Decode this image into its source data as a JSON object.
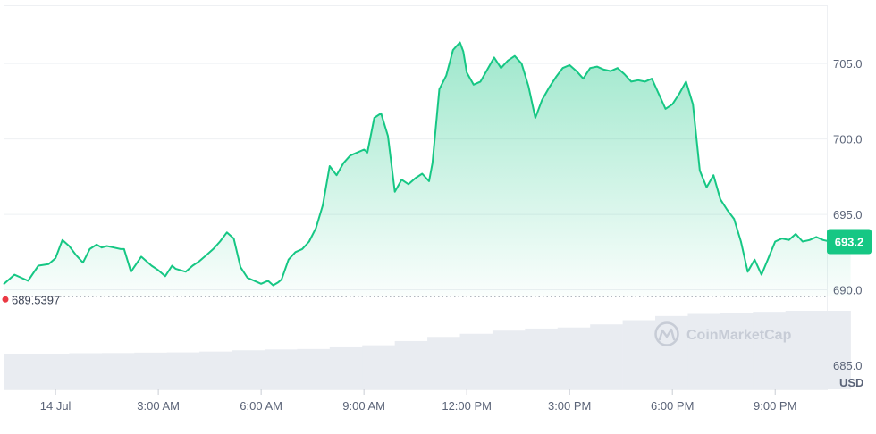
{
  "chart_data": {
    "type": "area",
    "unit": "USD",
    "ylim": [
      683.4,
      708.8
    ],
    "y_ticks": [
      685.0,
      690.0,
      695.0,
      700.0,
      705.0
    ],
    "y_tick_labels": [
      "685.0",
      "690.0",
      "695.0",
      "700.0",
      "705.0"
    ],
    "x_tick_labels": [
      "14 Jul",
      "3:00 AM",
      "6:00 AM",
      "9:00 AM",
      "12:00 PM",
      "3:00 PM",
      "6:00 PM",
      "9:00 PM"
    ],
    "x_tick_hours": [
      0,
      3,
      6,
      9,
      12,
      15,
      18,
      21
    ],
    "x_range_hours": [
      -1.5,
      23.3
    ],
    "open_price": 689.5397,
    "open_price_label": "689.5397",
    "last_price": 693.2,
    "last_price_label": "693.2",
    "grid": true,
    "line_color": "#16c784",
    "series": [
      {
        "x": [
          -1.5,
          -1.2,
          -1.0,
          -0.8,
          -0.5,
          -0.2,
          0.0,
          0.2,
          0.4,
          0.6,
          0.8,
          1.0,
          1.2,
          1.35,
          1.5,
          1.7,
          1.9,
          2.0,
          2.2,
          2.5,
          2.8,
          3.0,
          3.2,
          3.4,
          3.5,
          3.8,
          4.0,
          4.2,
          4.4,
          4.6,
          4.8,
          5.0,
          5.2,
          5.4,
          5.6,
          5.8,
          6.0,
          6.2,
          6.35,
          6.5,
          6.6,
          6.8,
          7.0,
          7.2,
          7.4,
          7.6,
          7.8,
          8.0,
          8.2,
          8.4,
          8.6,
          8.8,
          9.0,
          9.1,
          9.3,
          9.5,
          9.7,
          9.9,
          10.1,
          10.3,
          10.5,
          10.7,
          10.9,
          11.0,
          11.2,
          11.4,
          11.6,
          11.8,
          11.9,
          12.0,
          12.2,
          12.4,
          12.6,
          12.8,
          13.0,
          13.2,
          13.4,
          13.6,
          13.8,
          14.0,
          14.2,
          14.4,
          14.6,
          14.8,
          15.0,
          15.2,
          15.4,
          15.6,
          15.8,
          16.0,
          16.2,
          16.4,
          16.6,
          16.8,
          17.0,
          17.2,
          17.4,
          17.6,
          17.8,
          18.0,
          18.2,
          18.4,
          18.6,
          18.8,
          19.0,
          19.2,
          19.4,
          19.6,
          19.8,
          20.0,
          20.2,
          20.4,
          20.6,
          20.8,
          21.0,
          21.2,
          21.4,
          21.6,
          21.8,
          22.0,
          22.2,
          22.4,
          22.6,
          22.8,
          23.0,
          23.2
        ],
        "values": [
          690.4,
          691.0,
          690.8,
          690.6,
          691.6,
          691.7,
          692.1,
          693.3,
          692.9,
          692.3,
          691.8,
          692.7,
          693.0,
          692.8,
          692.9,
          692.8,
          692.7,
          692.7,
          691.2,
          692.2,
          691.6,
          691.3,
          690.9,
          691.6,
          691.4,
          691.2,
          691.6,
          691.9,
          692.3,
          692.7,
          693.2,
          693.8,
          693.4,
          691.5,
          690.8,
          690.6,
          690.4,
          690.6,
          690.3,
          690.5,
          690.7,
          692.0,
          692.5,
          692.7,
          693.2,
          694.1,
          695.6,
          698.2,
          697.6,
          698.4,
          698.9,
          699.1,
          699.3,
          699.1,
          701.4,
          701.7,
          700.2,
          696.5,
          697.3,
          697.0,
          697.4,
          697.7,
          697.2,
          698.4,
          703.3,
          704.2,
          705.9,
          706.4,
          705.8,
          704.4,
          703.6,
          703.8,
          704.6,
          705.4,
          704.7,
          705.2,
          705.5,
          705.0,
          703.5,
          701.4,
          702.6,
          703.4,
          704.1,
          704.7,
          704.9,
          704.5,
          704.0,
          704.7,
          704.8,
          704.6,
          704.5,
          704.7,
          704.3,
          703.8,
          703.9,
          703.8,
          704.0,
          703.0,
          702.0,
          702.3,
          703.0,
          703.8,
          702.3,
          697.9,
          696.8,
          697.6,
          696.0,
          695.3,
          694.7,
          693.2,
          691.2,
          692.0,
          691.0,
          692.1,
          693.2,
          693.4,
          693.3,
          693.7,
          693.2,
          693.3,
          693.5,
          693.3,
          693.2,
          693.5,
          693.4,
          693.2
        ]
      }
    ],
    "volume": {
      "x_range_hours": [
        -1.5,
        23.2
      ],
      "values": [
        0.3,
        0.3,
        0.302,
        0.303,
        0.305,
        0.306,
        0.31,
        0.316,
        0.32,
        0.322,
        0.33,
        0.34,
        0.36,
        0.38,
        0.395,
        0.41,
        0.42,
        0.425,
        0.44,
        0.46,
        0.48,
        0.49,
        0.495,
        0.5,
        0.505,
        0.505
      ]
    }
  },
  "watermark": {
    "icon": "coinmarketcap-logo-icon",
    "text": "CoinMarketCap"
  }
}
